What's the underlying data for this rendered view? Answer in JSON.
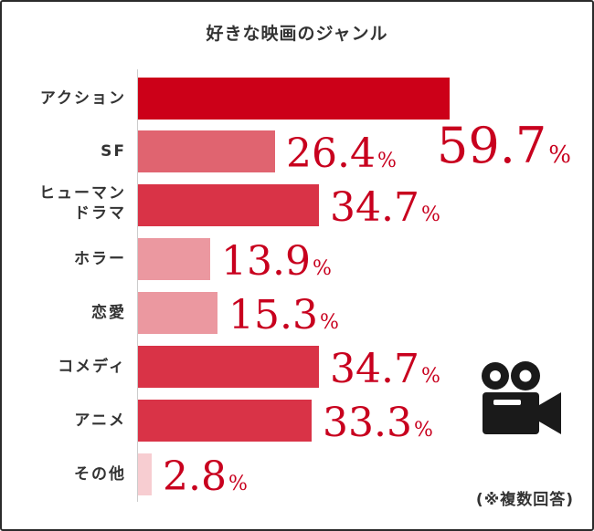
{
  "chart_data": {
    "type": "bar",
    "orientation": "horizontal",
    "title": "好きな映画のジャンル",
    "categories": [
      "アクション",
      "SF",
      "ヒューマン\nドラマ",
      "ホラー",
      "恋愛",
      "コメディ",
      "アニメ",
      "その他"
    ],
    "values": [
      59.7,
      26.4,
      34.7,
      13.9,
      15.3,
      34.7,
      33.3,
      2.8
    ],
    "value_labels": [
      "59.7",
      "26.4",
      "34.7",
      "13.9",
      "15.3",
      "34.7",
      "33.3",
      "2.8"
    ],
    "unit": "%",
    "bar_colors": [
      "#cc0018",
      "#e06470",
      "#d93347",
      "#eb98a0",
      "#eb98a0",
      "#d93347",
      "#d93347",
      "#f7cdd1"
    ],
    "value_color": "#c8001e",
    "xlim": [
      0,
      59.7
    ],
    "grid": false,
    "legend": false
  },
  "note": "(※複数回答)",
  "icon": "movie-camera-icon",
  "colors": {
    "text": "#333333",
    "border": "#2b2b2b"
  }
}
